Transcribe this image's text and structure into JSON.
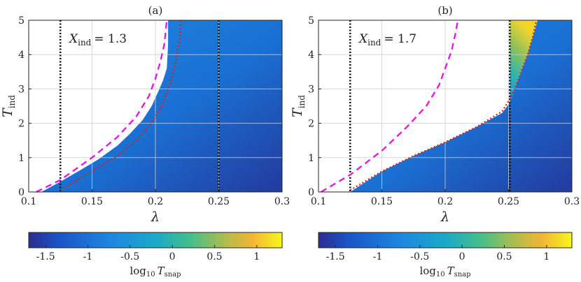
{
  "chart_data": [
    {
      "type": "heatmap",
      "title": "(a)",
      "xlabel": "λ",
      "ylabel": "T_ind",
      "ylabel_main": "T",
      "ylabel_sub": "ind",
      "xlim": [
        0.1,
        0.3
      ],
      "ylim": [
        0,
        5
      ],
      "xticks": [
        0.1,
        0.15,
        0.2,
        0.25,
        0.3
      ],
      "xtick_labels": [
        "0.1",
        "0.15",
        "0.2",
        "0.25",
        "0.3"
      ],
      "yticks": [
        0,
        1,
        2,
        3,
        4,
        5
      ],
      "ytick_labels": [
        "0",
        "1",
        "2",
        "3",
        "4",
        "5"
      ],
      "grid": true,
      "annotation": {
        "var": "X",
        "sub": "ind",
        "value": "= 1.3"
      },
      "vlines": [
        0.125,
        0.25
      ],
      "magenta_dashed": {
        "x": [
          0.106,
          0.125,
          0.15,
          0.17,
          0.185,
          0.195,
          0.2,
          0.204,
          0.207,
          0.209
        ],
        "y": [
          0.0,
          0.35,
          1.0,
          1.6,
          2.2,
          2.8,
          3.3,
          3.8,
          4.3,
          5.0
        ]
      },
      "red_dotted": {
        "x": [
          0.125,
          0.15,
          0.17,
          0.185,
          0.197,
          0.206,
          0.212,
          0.216,
          0.219,
          0.22
        ],
        "y": [
          0.05,
          0.6,
          1.05,
          1.5,
          2.0,
          2.6,
          3.2,
          3.8,
          4.4,
          5.0
        ]
      },
      "filled_boundary": {
        "x": [
          0.11,
          0.125,
          0.14,
          0.155,
          0.17,
          0.18,
          0.19,
          0.197,
          0.202,
          0.206,
          0.209,
          0.21,
          0.21
        ],
        "y": [
          0.0,
          0.3,
          0.62,
          0.95,
          1.35,
          1.7,
          2.1,
          2.5,
          2.9,
          3.25,
          3.6,
          4.3,
          5.0
        ]
      },
      "colorbar": {
        "range": [
          -1.7,
          1.3
        ],
        "ticks": [
          -1.5,
          -1,
          -0.5,
          0,
          0.5,
          1
        ],
        "tick_labels": [
          "-1.5",
          "-1",
          "-0.5",
          "0",
          "0.5",
          "1"
        ],
        "label_main": "log",
        "label_base": "10",
        "label_var": "T",
        "label_sub": "snap"
      }
    },
    {
      "type": "heatmap",
      "title": "(b)",
      "xlabel": "λ",
      "ylabel": "T_ind",
      "ylabel_main": "T",
      "ylabel_sub": "ind",
      "xlim": [
        0.1,
        0.3
      ],
      "ylim": [
        0,
        5
      ],
      "xticks": [
        0.1,
        0.15,
        0.2,
        0.25,
        0.3
      ],
      "xtick_labels": [
        "0.1",
        "0.15",
        "0.2",
        "0.25",
        "0.3"
      ],
      "yticks": [
        0,
        1,
        2,
        3,
        4,
        5
      ],
      "ytick_labels": [
        "0",
        "1",
        "2",
        "3",
        "4",
        "5"
      ],
      "grid": true,
      "annotation": {
        "var": "X",
        "sub": "ind",
        "value": "= 1.7"
      },
      "vlines": [
        0.125,
        0.251
      ],
      "magenta_dashed": {
        "x": [
          0.102,
          0.125,
          0.15,
          0.17,
          0.185,
          0.195,
          0.2,
          0.205,
          0.208,
          0.21
        ],
        "y": [
          0.0,
          0.5,
          1.2,
          1.9,
          2.5,
          3.1,
          3.6,
          4.1,
          4.6,
          5.0
        ]
      },
      "red_dotted": {
        "x": [
          0.125,
          0.15,
          0.175,
          0.2,
          0.225,
          0.245,
          0.25,
          0.255,
          0.26,
          0.265,
          0.269,
          0.272
        ],
        "y": [
          0.05,
          0.6,
          1.05,
          1.45,
          1.9,
          2.35,
          2.65,
          3.0,
          3.5,
          4.0,
          4.5,
          5.0
        ]
      },
      "filled_boundary": {
        "x": [
          0.125,
          0.15,
          0.175,
          0.2,
          0.225,
          0.245,
          0.251
        ],
        "y": [
          0.0,
          0.6,
          1.05,
          1.45,
          1.9,
          2.3,
          2.6
        ]
      },
      "wedge_boundary": {
        "x": [
          0.251,
          0.255,
          0.26,
          0.265,
          0.269,
          0.273
        ],
        "y": [
          2.6,
          3.0,
          3.5,
          4.0,
          4.5,
          5.0
        ]
      },
      "colorbar": {
        "range": [
          -1.7,
          1.3
        ],
        "ticks": [
          -1.5,
          -1,
          -0.5,
          0,
          0.5,
          1
        ],
        "tick_labels": [
          "-1.5",
          "-1",
          "-0.5",
          "0",
          "0.5",
          "1"
        ],
        "label_main": "log",
        "label_base": "10",
        "label_var": "T",
        "label_sub": "snap"
      }
    }
  ],
  "colors": {
    "cmap_dark": "#2b2b8c",
    "cmap_mid": "#1f7fd6",
    "cmap_teal": "#2fb7a0",
    "cmap_orange": "#f0b43a",
    "cmap_yellow": "#f5f520",
    "magenta": "#e31be3",
    "red": "#d62020",
    "black": "#111111",
    "grid": "#cfcfcf"
  }
}
